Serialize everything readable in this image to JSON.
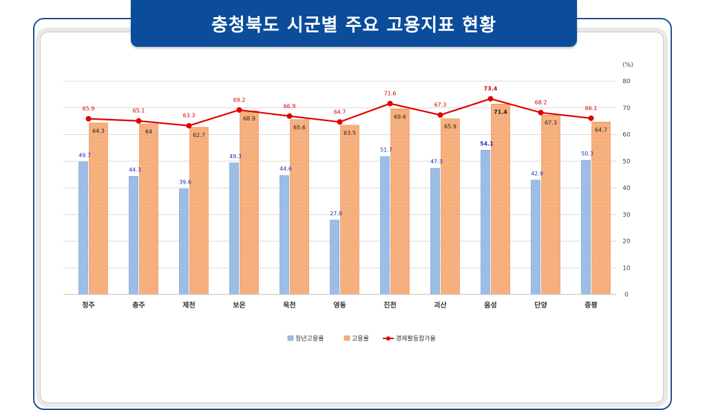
{
  "title": "충청북도 시군별 주요 고용지표 현황",
  "colors": {
    "banner": "#0b4c9b",
    "youth_bar": "#8eb4e3",
    "youth_bar_edge": "#5b8ccc",
    "emp_bar": "#f4a46c",
    "emp_bar_edge": "#e07b39",
    "line": "#e00000",
    "youth_label": "#2a2ab8",
    "line_label": "#d00000",
    "grid": "#d9d9d9"
  },
  "chart_data": {
    "type": "bar",
    "unit": "(%)",
    "ylim": [
      0,
      80
    ],
    "yticks": [
      0,
      10,
      20,
      30,
      40,
      50,
      60,
      70,
      80
    ],
    "grid": true,
    "legend_position": "bottom",
    "categories": [
      "청주",
      "충주",
      "제천",
      "보은",
      "옥천",
      "영동",
      "진천",
      "괴산",
      "음성",
      "단양",
      "증평"
    ],
    "series": [
      {
        "name": "청년고용률",
        "type": "bar",
        "values": [
          49.7,
          44.3,
          39.6,
          49.3,
          44.6,
          27.9,
          51.7,
          47.3,
          54.1,
          42.9,
          50.3
        ],
        "labels": [
          "49.7",
          "44.3",
          "39.6",
          "49.3",
          "44.6",
          "27.9",
          "51.7",
          "47.3",
          "54.1",
          "42.9",
          "50.3"
        ]
      },
      {
        "name": "고용률",
        "type": "bar",
        "values": [
          64.3,
          64,
          62.7,
          68.9,
          65.6,
          63.5,
          69.6,
          65.9,
          71.4,
          67.3,
          64.7
        ],
        "labels": [
          "64.3",
          "64",
          "62.7",
          "68.9",
          "65.6",
          "63.5",
          "69.6",
          "65.9",
          "71.4",
          "67.3",
          "64.7"
        ]
      },
      {
        "name": "경제활동참가율",
        "type": "line",
        "values": [
          65.9,
          65.1,
          63.3,
          69.2,
          66.9,
          64.7,
          71.6,
          67.3,
          73.4,
          68.2,
          66.1
        ],
        "labels": [
          "65.9",
          "65.1",
          "63.3",
          "69.2",
          "66.9",
          "64.7",
          "71.6",
          "67.3",
          "73.4",
          "68.2",
          "66.1"
        ]
      }
    ]
  }
}
